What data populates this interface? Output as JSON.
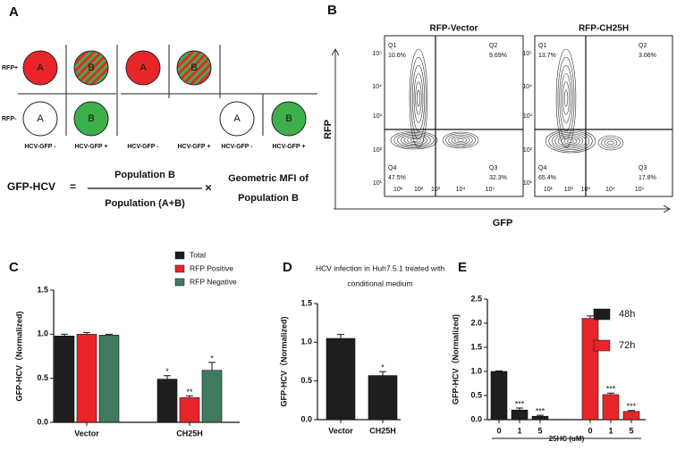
{
  "panel_a": {
    "letter": "A",
    "row_labels": [
      "RFP+",
      "RFP-"
    ],
    "circle_labels": [
      "A",
      "B",
      "A",
      "B",
      "A",
      "B",
      "A",
      "B"
    ],
    "column_labels": [
      "HCV-GFP -",
      "HCV-GFP +",
      "HCV-GFP -",
      "HCV-GFP +",
      "HCV-GFP -",
      "HCV-GFP +"
    ],
    "formula": {
      "lhs": "GFP-HCV",
      "equals": "=",
      "numerator": "Population B",
      "denominator": "Population (A+B)",
      "times": "×",
      "factor_lines": [
        "Geometric MFI of",
        "Population B"
      ]
    }
  },
  "panel_b": {
    "letter": "B",
    "y_label": "RFP",
    "x_label": "GFP",
    "ticks": [
      "10¹",
      "10²",
      "10³",
      "10⁴",
      "10⁵"
    ],
    "plots": [
      {
        "title": "RFP-Vector",
        "quadrants": [
          {
            "name": "Q1",
            "pct": "10.6%"
          },
          {
            "name": "Q2",
            "pct": "9.69%"
          },
          {
            "name": "Q3",
            "pct": "32.3%"
          },
          {
            "name": "Q4",
            "pct": "47.5%"
          }
        ]
      },
      {
        "title": "RFP-CH25H",
        "quadrants": [
          {
            "name": "Q1",
            "pct": "13.7%"
          },
          {
            "name": "Q2",
            "pct": "3.06%"
          },
          {
            "name": "Q3",
            "pct": "17.8%"
          },
          {
            "name": "Q4",
            "pct": "65.4%"
          }
        ]
      }
    ]
  },
  "chart_data": [
    {
      "type": "bar",
      "panel": "C",
      "y_label": "GFP-HCV（Normalized)",
      "categories": [
        "Vector",
        "CH25H"
      ],
      "series": [
        {
          "name": "Total",
          "color": "#1e1e1e",
          "values": [
            0.98,
            0.49
          ],
          "errors": [
            0.02,
            0.04
          ],
          "stars": [
            null,
            "*"
          ]
        },
        {
          "name": "RFP Positive",
          "color": "#e8262a",
          "values": [
            1.0,
            0.28
          ],
          "errors": [
            0.02,
            0.02
          ],
          "stars": [
            null,
            "**"
          ]
        },
        {
          "name": "RFP Negative",
          "color": "#3f7a5f",
          "values": [
            0.99,
            0.59
          ],
          "errors": [
            0.01,
            0.09
          ],
          "stars": [
            null,
            "*"
          ]
        }
      ],
      "ylim": [
        0,
        1.5
      ],
      "yticks": [
        {
          "value": 0,
          "label": "0.0"
        },
        0.5,
        {
          "value": 1,
          "label": "1.0"
        },
        1.5
      ]
    },
    {
      "type": "bar",
      "panel": "D",
      "title_lines": [
        "HCV infection in Huh7.5.1 treated with",
        "conditional medium"
      ],
      "y_label": "GFP-HCV（Normalized)",
      "categories": [
        "Vector",
        "CH25H"
      ],
      "color": "#1e1e1e",
      "values": [
        1.05,
        0.57
      ],
      "errors": [
        0.05,
        0.05
      ],
      "stars": [
        null,
        "*"
      ],
      "ylim": [
        0,
        1.5
      ],
      "yticks": [
        {
          "value": 0,
          "label": "0.0"
        },
        0.5,
        {
          "value": 1,
          "label": "1.0"
        },
        1.5
      ]
    },
    {
      "type": "bar",
      "panel": "E",
      "y_label": "GFP-HCV（Normalized)",
      "x_label": "25HC (uM)",
      "categories": [
        "0",
        "1",
        "5",
        "0",
        "1",
        "5"
      ],
      "series": [
        {
          "name": "48h",
          "color": "#1e1e1e",
          "values": [
            1.0,
            0.2,
            0.07,
            null,
            null,
            null
          ],
          "errors": [
            0.01,
            0.04,
            0.02,
            null,
            null,
            null
          ],
          "stars": [
            null,
            "***",
            "***",
            null,
            null,
            null
          ]
        },
        {
          "name": "72h",
          "color": "#e8262a",
          "values": [
            null,
            null,
            null,
            2.1,
            0.52,
            0.17
          ],
          "errors": [
            null,
            null,
            null,
            0.05,
            0.03,
            0.02
          ],
          "stars": [
            null,
            null,
            null,
            null,
            "***",
            "***"
          ]
        }
      ],
      "ylim": [
        0,
        2.5
      ],
      "yticks": [
        {
          "value": 0,
          "label": "0.0"
        },
        0.5,
        {
          "value": 1,
          "label": "1.0"
        },
        1.5,
        {
          "value": 2,
          "label": "2.0"
        },
        2.5
      ]
    }
  ]
}
